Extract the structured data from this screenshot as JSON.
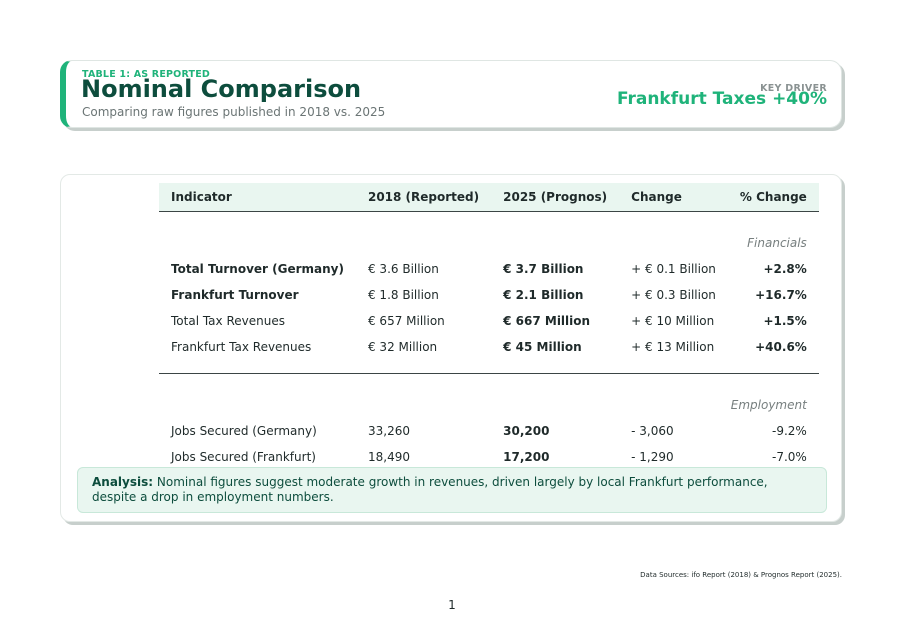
{
  "header": {
    "subtitle": "TABLE 1: AS REPORTED",
    "title": "Nominal Comparison",
    "description": "Comparing raw figures published in 2018 vs. 2025",
    "key_label": "KEY DRIVER",
    "key_value": "Frankfurt Taxes +40%"
  },
  "table": {
    "columns": [
      "Indicator",
      "2018 (Reported)",
      "2025 (Prognos)",
      "Change",
      "% Change"
    ],
    "sections": [
      {
        "name": "Financials",
        "rows": [
          {
            "indicator": "Total Turnover (Germany)",
            "y2018": "€ 3.6 Billion",
            "y2025": "€ 3.7 Billion",
            "change": "+ € 0.1 Billion",
            "pct": "+2.8%"
          },
          {
            "indicator": "Frankfurt Turnover",
            "y2018": "€ 1.8 Billion",
            "y2025": "€ 2.1 Billion",
            "change": "+ € 0.3 Billion",
            "pct": "+16.7%"
          },
          {
            "indicator": "Total Tax Revenues",
            "y2018": "€ 657 Million",
            "y2025": "€ 667 Million",
            "change": "+ € 10 Million",
            "pct": "+1.5%"
          },
          {
            "indicator": "Frankfurt Tax Revenues",
            "y2018": "€ 32 Million",
            "y2025": "€ 45 Million",
            "change": "+ € 13 Million",
            "pct": "+40.6%"
          }
        ]
      },
      {
        "name": "Employment",
        "rows": [
          {
            "indicator": "Jobs Secured (Germany)",
            "y2018": "33,260",
            "y2025": "30,200",
            "change": "- 3,060",
            "pct": "-9.2%"
          },
          {
            "indicator": "Jobs Secured (Frankfurt)",
            "y2018": "18,490",
            "y2025": "17,200",
            "change": "- 1,290",
            "pct": "-7.0%"
          }
        ]
      }
    ]
  },
  "analysis": {
    "label": "Analysis:",
    "text": "Nominal figures suggest moderate growth in revenues, driven largely by local Frankfurt performance, despite a drop in employment numbers."
  },
  "footer": {
    "sources": "Data Sources: ifo Report (2018) & Prognos Report (2025).",
    "page_number": "1"
  },
  "colors": {
    "accent": "#1fb37a",
    "title": "#0d4d3d",
    "negative": "#d93b3b"
  }
}
